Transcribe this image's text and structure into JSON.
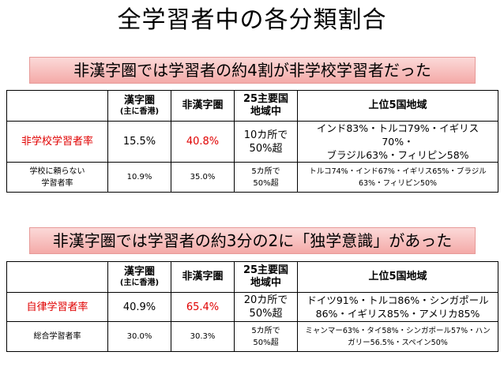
{
  "title": "全学習者中の各分類割合",
  "sections": [
    {
      "banner": "非漢字圏では学習者の約4割が非学校学習者だった",
      "header": {
        "kanji": "漢字圏",
        "kanji_sub": "(主に香港)",
        "nonkanji": "非漢字圏",
        "major": "25主要国\n地域中",
        "top5": "上位5国地域"
      },
      "row1": {
        "label": "非学校学習者率",
        "kanji": "15.5%",
        "nonkanji": "40.8%",
        "major": "10カ所で\n50%超",
        "top5": "インド83%・トルコ79%・イギリス70%・\nブラジル63%・フィリピン58%"
      },
      "row2": {
        "label": "学校に頼らない\n学習者率",
        "kanji": "10.9%",
        "nonkanji": "35.0%",
        "major": "5カ所で\n50%超",
        "top5": "トルコ74%・インド67%・イギリス65%・ブラジル\n63%・フィリピン50%"
      }
    },
    {
      "banner": "非漢字圏では学習者の約3分の2に「独学意識」があった",
      "header": {
        "kanji": "漢字圏",
        "kanji_sub": "(主に香港)",
        "nonkanji": "非漢字圏",
        "major": "25主要国\n地域中",
        "top5": "上位5国地域"
      },
      "row1": {
        "label": "自律学習者率",
        "kanji": "40.9%",
        "nonkanji": "65.4%",
        "major": "20カ所で\n50%超",
        "top5": "ドイツ91%・トルコ86%・シンガポール\n86%・イギリス85%・アメリカ85%"
      },
      "row2": {
        "label": "総合学習者率",
        "kanji": "30.0%",
        "nonkanji": "30.3%",
        "major": "5カ所で\n50%超",
        "top5": "ミャンマー63%・タイ58%・シンガポール57%・ハン\nガリー56.5%・スペイン50%"
      }
    }
  ]
}
